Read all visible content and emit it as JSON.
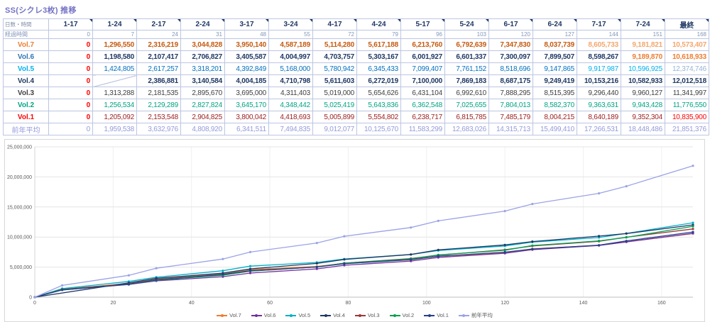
{
  "title": "SS(シクレ3枚) 推移",
  "colors": {
    "title": "#7472C4",
    "header_text": "#1F3864",
    "grid_border": "#BCC6E2",
    "elapsed_text": "#8496B8",
    "zero": "#FF0000",
    "axis_label": "#595959"
  },
  "table": {
    "corner_label": "日数・時間",
    "elapsed_label": "経過時間",
    "columns": [
      "1-17",
      "1-24",
      "2-17",
      "2-24",
      "3-17",
      "3-24",
      "4-17",
      "4-24",
      "5-17",
      "5-24",
      "6-17",
      "6-24",
      "7-17",
      "7-24",
      "最終"
    ],
    "row_styles": [
      {
        "label": "Vol.7",
        "label_color": "#ED7D31",
        "value_color": "#C55A11",
        "bold": true,
        "zero_red": true,
        "overrides": {
          "12": "#F4A66C",
          "13": "#F4A66C",
          "14": "#F4A66C"
        }
      },
      {
        "label": "Vol.6",
        "label_color": "#2E75B6",
        "value_color": "#1F3864",
        "bold": true,
        "zero_red": true,
        "overrides": {
          "13": "#ED7D31",
          "14": "#ED7D31"
        }
      },
      {
        "label": "Vol.5",
        "label_color": "#00B0F0",
        "value_color": "#0070C0",
        "bold": false,
        "zero_red": true,
        "overrides": {
          "12": "#00B0F0",
          "13": "#00B0F0",
          "14": "#95B3D7"
        }
      },
      {
        "label": "Vol.4",
        "label_color": "#1F3864",
        "value_color": "#1F3864",
        "bold": true,
        "zero_red": true,
        "overrides": {}
      },
      {
        "label": "Vol.3",
        "label_color": "#404040",
        "value_color": "#404040",
        "bold": false,
        "zero_red": true,
        "overrides": {}
      },
      {
        "label": "Vol.2",
        "label_color": "#00A385",
        "value_color": "#00A385",
        "bold": false,
        "zero_red": true,
        "overrides": {}
      },
      {
        "label": "Vol.1",
        "label_color": "#FF0000",
        "value_color": "#9C2020",
        "bold": false,
        "zero_red": true,
        "overrides": {
          "14": "#FF0000"
        }
      },
      {
        "label": "前年平均",
        "label_color": "#959ADB",
        "value_color": "#959ADB",
        "bold": false,
        "zero_red": false,
        "label_bold": false,
        "overrides": {}
      }
    ]
  },
  "chart_data": {
    "type": "line",
    "x": [
      0,
      7,
      24,
      31,
      48,
      55,
      72,
      79,
      96,
      103,
      120,
      127,
      144,
      151,
      168
    ],
    "series": [
      {
        "name": "Vol.7",
        "color": "#ED7D31",
        "values": [
          0,
          1296550,
          2316219,
          3044828,
          3950140,
          4587189,
          5114280,
          5617188,
          6213760,
          6792639,
          7347830,
          8037739,
          8605733,
          9181821,
          10573407
        ]
      },
      {
        "name": "Vol.6",
        "color": "#7030A0",
        "values": [
          0,
          1198580,
          2107417,
          2706827,
          3405587,
          4004997,
          4703757,
          5303167,
          6001927,
          6601337,
          7300097,
          7899507,
          8598267,
          9189870,
          10618933
        ]
      },
      {
        "name": "Vol.5",
        "color": "#00AFC8",
        "values": [
          0,
          1424805,
          2617257,
          3318201,
          4392849,
          5168000,
          5780942,
          6345433,
          7099407,
          7761152,
          8518696,
          9147865,
          9917987,
          10596925,
          12374746
        ]
      },
      {
        "name": "Vol.4",
        "color": "#1F3864",
        "values": [
          0,
          null,
          2386881,
          3140584,
          4004185,
          4710798,
          5611603,
          6272019,
          7100000,
          7869183,
          8687175,
          9249419,
          10153216,
          10582933,
          12012518
        ]
      },
      {
        "name": "Vol.3",
        "color": "#9C3838",
        "values": [
          0,
          1313288,
          2181535,
          2895670,
          3695000,
          4311403,
          5019000,
          5654626,
          6431104,
          6992610,
          7888295,
          8515395,
          9296440,
          9960127,
          11341997
        ]
      },
      {
        "name": "Vol.2",
        "color": "#00A050",
        "values": [
          0,
          1256534,
          2129289,
          2827824,
          3645170,
          4348442,
          5025419,
          5643836,
          6362548,
          7025655,
          7804013,
          8582370,
          9363631,
          9943428,
          11776550
        ]
      },
      {
        "name": "Vol.1",
        "color": "#26408C",
        "values": [
          0,
          1205092,
          2153548,
          2904825,
          3800042,
          4418693,
          5005899,
          5554802,
          6238717,
          6815785,
          7485179,
          8004215,
          8640189,
          9352304,
          10835900
        ]
      },
      {
        "name": "前年平均",
        "color": "#9BA3E6",
        "values": [
          0,
          1959538,
          3632976,
          4808920,
          6341511,
          7494835,
          9012077,
          10125670,
          11583299,
          12683026,
          14315713,
          15499410,
          17266531,
          18448486,
          21851376
        ]
      }
    ],
    "title": "",
    "xlabel": "",
    "ylabel": "",
    "xlim": [
      0,
      168
    ],
    "ylim": [
      0,
      25000000
    ],
    "xticks": [
      0,
      20,
      40,
      60,
      80,
      100,
      120,
      140,
      160
    ],
    "yticks": [
      0,
      5000000,
      10000000,
      15000000,
      20000000,
      25000000
    ],
    "grid": true,
    "legend_position": "bottom"
  }
}
